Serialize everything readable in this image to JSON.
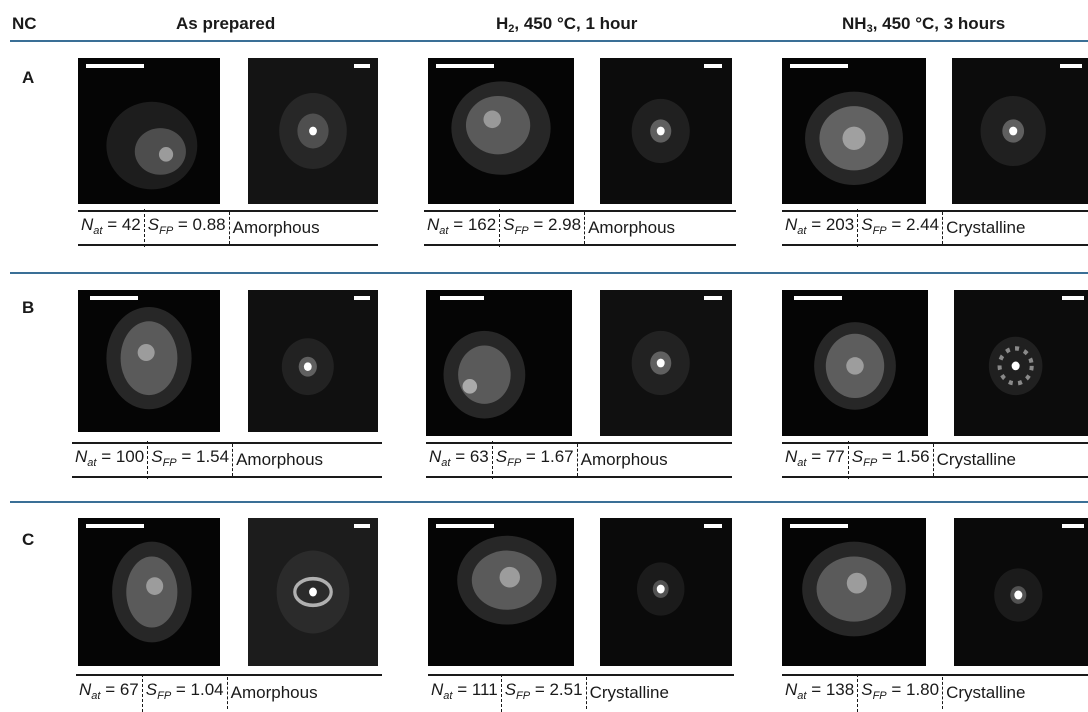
{
  "header": {
    "nc": "NC",
    "col1": "As prepared",
    "col2_pre": "H",
    "col2_sub": "2",
    "col2_post": ", 450 °C, 1 hour",
    "col3_pre": "NH",
    "col3_sub": "3",
    "col3_post": ", 450 °C, 3 hours"
  },
  "symbols": {
    "n": "N",
    "n_sub": "at",
    "s": "S",
    "s_sub": "FP"
  },
  "rows": [
    {
      "label": "A",
      "cells": [
        {
          "nat": " = 42",
          "sfp": " = 0.88",
          "state": "Amorphous"
        },
        {
          "nat": " = 162",
          "sfp": " = 2.98",
          "state": "Amorphous"
        },
        {
          "nat": " = 203",
          "sfp": " = 2.44",
          "state": "Crystalline"
        }
      ]
    },
    {
      "label": "B",
      "cells": [
        {
          "nat": " = 100",
          "sfp": " = 1.54",
          "state": "Amorphous"
        },
        {
          "nat": " = 63",
          "sfp": " = 1.67",
          "state": "Amorphous"
        },
        {
          "nat": " = 77",
          "sfp": " = 1.56",
          "state": "Crystalline"
        }
      ]
    },
    {
      "label": "C",
      "cells": [
        {
          "nat": " = 67",
          "sfp": " = 1.04",
          "state": "Amorphous"
        },
        {
          "nat": " = 111",
          "sfp": " = 2.51",
          "state": "Crystalline"
        },
        {
          "nat": " = 138",
          "sfp": " = 1.80",
          "state": "Crystalline"
        }
      ]
    }
  ],
  "colors": {
    "rule": "#3a6f96",
    "panel_bg": "#000000",
    "text": "#1a1a1a"
  }
}
